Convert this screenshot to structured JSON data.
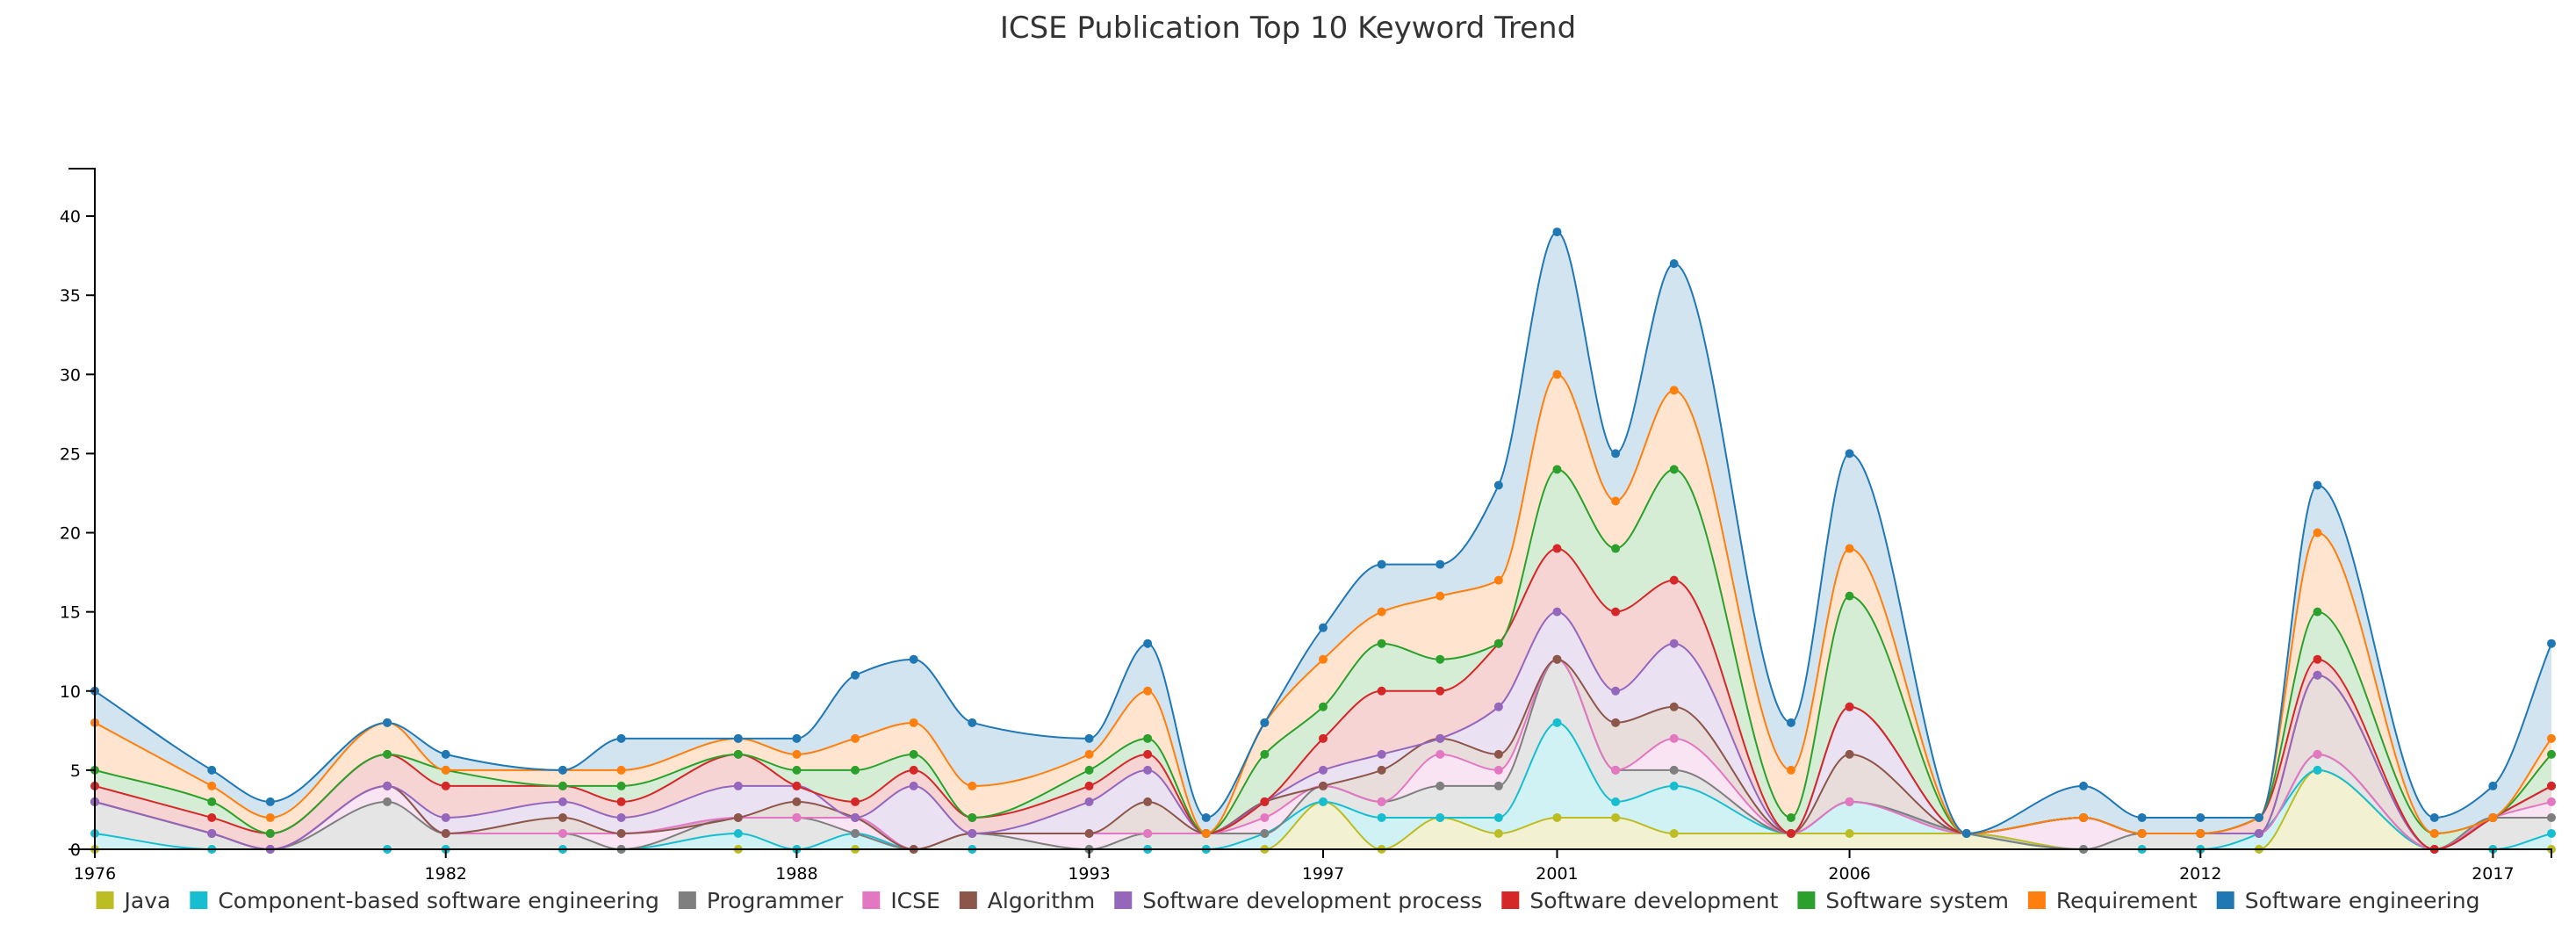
{
  "chart_data": {
    "type": "area",
    "stacked": true,
    "title": "ICSE Publication Top 10 Keyword Trend",
    "xlabel": "",
    "ylabel": "",
    "x": [
      1976,
      1978,
      1979,
      1981,
      1982,
      1984,
      1985,
      1987,
      1988,
      1989,
      1990,
      1991,
      1993,
      1994,
      1995,
      1996,
      1997,
      1998,
      1999,
      2000,
      2001,
      2002,
      2003,
      2005,
      2006,
      2008,
      2010,
      2011,
      2012,
      2013,
      2014,
      2016,
      2017,
      2018
    ],
    "x_ticks": [
      "1976",
      "1982",
      "1988",
      "1993",
      "1997",
      "2001",
      "2006",
      "2012",
      "2017"
    ],
    "y_ticks": [
      "0",
      "5",
      "10",
      "15",
      "20",
      "25",
      "30",
      "35",
      "40"
    ],
    "ylim": [
      0,
      43
    ],
    "legend_position": "bottom",
    "series": [
      {
        "name": "Java",
        "color": "#bcbd22",
        "values": [
          0,
          0,
          0,
          0,
          0,
          0,
          0,
          0,
          0,
          0,
          0,
          0,
          0,
          0,
          0,
          0,
          3,
          0,
          2,
          1,
          2,
          2,
          1,
          1,
          1,
          1,
          0,
          0,
          0,
          0,
          5,
          0,
          0,
          0
        ]
      },
      {
        "name": "Component-based software engineering",
        "color": "#17becf",
        "values": [
          1,
          0,
          0,
          0,
          0,
          0,
          0,
          1,
          0,
          1,
          0,
          0,
          0,
          0,
          0,
          1,
          0,
          2,
          0,
          1,
          6,
          1,
          3,
          0,
          2,
          0,
          0,
          0,
          0,
          1,
          0,
          0,
          0,
          1
        ]
      },
      {
        "name": "Programmer",
        "color": "#7f7f7f",
        "values": [
          2,
          1,
          0,
          3,
          1,
          1,
          0,
          1,
          2,
          0,
          0,
          1,
          0,
          1,
          1,
          0,
          1,
          1,
          2,
          2,
          4,
          2,
          1,
          0,
          0,
          0,
          0,
          1,
          1,
          0,
          1,
          0,
          2,
          1
        ]
      },
      {
        "name": "ICSE",
        "color": "#e377c2",
        "values": [
          0,
          0,
          0,
          1,
          0,
          0,
          1,
          0,
          0,
          1,
          0,
          0,
          1,
          0,
          0,
          1,
          0,
          0,
          2,
          1,
          0,
          0,
          2,
          0,
          0,
          0,
          2,
          0,
          0,
          0,
          0,
          0,
          0,
          1
        ]
      },
      {
        "name": "Algorithm",
        "color": "#8c564b",
        "values": [
          0,
          0,
          0,
          0,
          0,
          1,
          0,
          0,
          1,
          0,
          0,
          0,
          0,
          2,
          0,
          1,
          0,
          2,
          1,
          1,
          0,
          3,
          2,
          0,
          3,
          0,
          0,
          0,
          0,
          0,
          5,
          0,
          0,
          1
        ]
      },
      {
        "name": "Software development process",
        "color": "#9467bd",
        "values": [
          0,
          0,
          0,
          0,
          1,
          1,
          1,
          2,
          1,
          0,
          4,
          0,
          2,
          2,
          0,
          0,
          1,
          1,
          0,
          3,
          3,
          2,
          4,
          0,
          3,
          0,
          0,
          0,
          0,
          0,
          0,
          0,
          0,
          0
        ]
      },
      {
        "name": "Software development",
        "color": "#d62728",
        "values": [
          1,
          1,
          1,
          2,
          2,
          1,
          1,
          2,
          0,
          1,
          1,
          1,
          1,
          1,
          0,
          0,
          2,
          4,
          3,
          4,
          4,
          5,
          4,
          0,
          0,
          0,
          0,
          0,
          0,
          1,
          1,
          0,
          0,
          0
        ]
      },
      {
        "name": "Software system",
        "color": "#2ca02c",
        "values": [
          1,
          1,
          0,
          0,
          1,
          0,
          1,
          0,
          1,
          2,
          1,
          0,
          1,
          1,
          0,
          3,
          2,
          3,
          2,
          0,
          5,
          4,
          7,
          1,
          7,
          0,
          0,
          0,
          0,
          0,
          3,
          1,
          0,
          2
        ]
      },
      {
        "name": "Requirement",
        "color": "#ff7f0e",
        "values": [
          3,
          1,
          1,
          2,
          0,
          1,
          1,
          1,
          1,
          2,
          2,
          2,
          1,
          3,
          0,
          2,
          3,
          2,
          4,
          4,
          6,
          3,
          5,
          3,
          3,
          0,
          0,
          0,
          0,
          0,
          5,
          0,
          0,
          1
        ]
      },
      {
        "name": "Software engineering",
        "color": "#1f77b4",
        "values": [
          2,
          1,
          1,
          0,
          1,
          0,
          2,
          0,
          1,
          4,
          4,
          4,
          1,
          3,
          1,
          0,
          2,
          3,
          2,
          6,
          9,
          3,
          8,
          3,
          6,
          0,
          2,
          1,
          1,
          0,
          3,
          1,
          2,
          6
        ]
      }
    ]
  }
}
